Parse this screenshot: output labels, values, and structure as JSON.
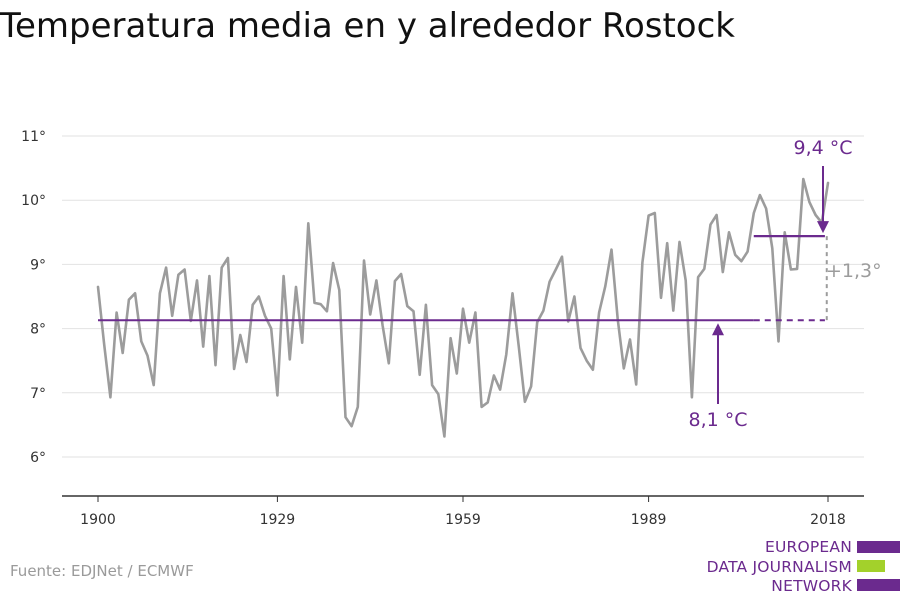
{
  "title": "Temperatura media en y alrededor Rostock",
  "source": "Fuente: EDJNet / ECMWF",
  "logo": {
    "lines": [
      "EUROPEAN",
      "DATA JOURNALISM",
      "NETWORK"
    ],
    "colors": [
      "#6b2a8e",
      "#a3d12b",
      "#6b2a8e"
    ]
  },
  "colors": {
    "series": "#9c9c9c",
    "accent": "#6b2a8e",
    "grid": "#e2e2e2",
    "axis": "#333333"
  },
  "chart_data": {
    "type": "line",
    "x_range": [
      1900,
      2018
    ],
    "ylim": [
      6,
      11
    ],
    "x_ticks": [
      1900,
      1929,
      1959,
      1989,
      2018
    ],
    "y_ticks": [
      6,
      7,
      8,
      9,
      10,
      11
    ],
    "y_tick_labels": [
      "6°",
      "7°",
      "8°",
      "9°",
      "10°",
      "11°"
    ],
    "grid": "horizontal",
    "series": [
      {
        "x": [
          1900,
          1901,
          1902,
          1903,
          1904,
          1905,
          1906,
          1907,
          1908,
          1909,
          1910,
          1911,
          1912,
          1913,
          1914,
          1915,
          1916,
          1917,
          1918,
          1919,
          1920,
          1921,
          1922,
          1923,
          1924,
          1925,
          1926,
          1927,
          1928,
          1929,
          1930,
          1931,
          1932,
          1933,
          1934,
          1935,
          1936,
          1937,
          1938,
          1939,
          1940,
          1941,
          1942,
          1943,
          1944,
          1945,
          1946,
          1947,
          1948,
          1949,
          1950,
          1951,
          1952,
          1953,
          1954,
          1955,
          1956,
          1957,
          1958,
          1959,
          1960,
          1961,
          1962,
          1963,
          1964,
          1965,
          1966,
          1967,
          1968,
          1969,
          1970,
          1971,
          1972,
          1973,
          1974,
          1975,
          1976,
          1977,
          1978,
          1979,
          1980,
          1981,
          1982,
          1983,
          1984,
          1985,
          1986,
          1987,
          1988,
          1989,
          1990,
          1991,
          1992,
          1993,
          1994,
          1995,
          1996,
          1997,
          1998,
          1999,
          2000,
          2001,
          2002,
          2003,
          2004,
          2005,
          2006,
          2007,
          2008,
          2009,
          2010,
          2011,
          2012,
          2013,
          2014,
          2015,
          2016,
          2017,
          2018
        ],
        "values": [
          8.65,
          7.75,
          6.93,
          8.25,
          7.62,
          8.45,
          8.55,
          7.8,
          7.58,
          7.12,
          8.55,
          8.95,
          8.2,
          8.84,
          8.92,
          8.12,
          8.75,
          7.72,
          8.82,
          7.43,
          8.95,
          9.1,
          7.37,
          7.9,
          7.48,
          8.37,
          8.5,
          8.2,
          8.0,
          6.96,
          8.82,
          7.52,
          8.65,
          7.78,
          9.64,
          8.4,
          8.38,
          8.27,
          9.02,
          8.6,
          6.62,
          6.48,
          6.78,
          9.06,
          8.22,
          8.75,
          8.05,
          7.46,
          8.74,
          8.85,
          8.35,
          8.27,
          7.28,
          8.37,
          7.12,
          6.98,
          6.32,
          7.85,
          7.3,
          8.31,
          7.78,
          8.25,
          6.78,
          6.85,
          7.27,
          7.05,
          7.6,
          8.55,
          7.73,
          6.86,
          7.1,
          8.1,
          8.28,
          8.73,
          8.92,
          9.12,
          8.11,
          8.5,
          7.7,
          7.5,
          7.36,
          8.25,
          8.66,
          9.23,
          8.15,
          7.38,
          7.83,
          7.13,
          9.03,
          9.76,
          9.8,
          8.48,
          9.33,
          8.28,
          9.35,
          8.75,
          6.93,
          8.8,
          8.93,
          9.62,
          9.77,
          8.88,
          9.5,
          9.15,
          9.05,
          9.2,
          9.8,
          10.08,
          9.87,
          9.25,
          7.8,
          9.5,
          8.92,
          8.93,
          10.33,
          9.97,
          9.77,
          9.65,
          10.27
        ]
      }
    ],
    "reference_lines": [
      {
        "label": "8,1 °C",
        "value": 8.13
      },
      {
        "label": "9,4 °C",
        "value": 9.44
      }
    ],
    "annotation": "+1,3°"
  }
}
